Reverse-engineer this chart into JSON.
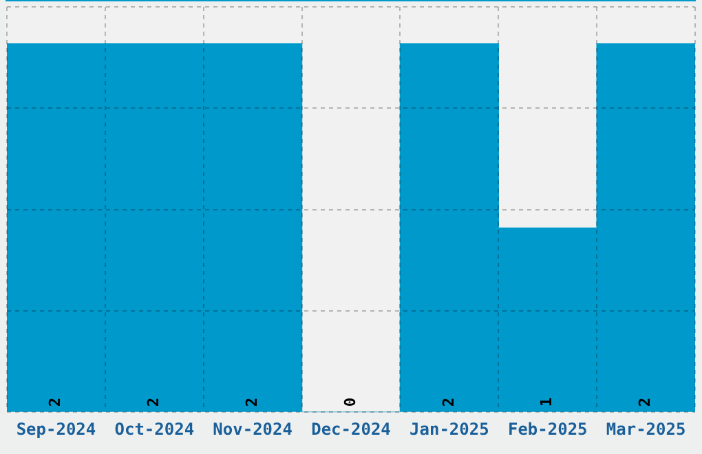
{
  "chart_data": {
    "type": "bar",
    "categories": [
      "Sep-2024",
      "Oct-2024",
      "Nov-2024",
      "Dec-2024",
      "Jan-2025",
      "Feb-2025",
      "Mar-2025"
    ],
    "values": [
      2,
      2,
      2,
      0,
      2,
      1,
      2
    ],
    "color": "#0099cc",
    "data_labels": true,
    "grid": true,
    "legend": false,
    "tick_labels": "x",
    "ylim": [
      0,
      2.2
    ],
    "yticks": [
      {
        "value": 0,
        "label": null
      },
      {
        "value": 0.55,
        "label": null
      },
      {
        "value": 1.1,
        "label": null
      },
      {
        "value": 1.65,
        "label": null
      },
      {
        "value": 2.2,
        "label": null
      }
    ]
  }
}
